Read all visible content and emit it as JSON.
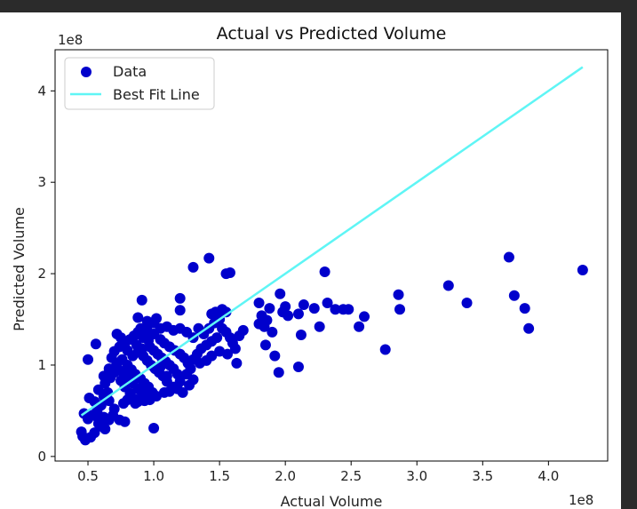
{
  "chart_data": {
    "type": "scatter",
    "title": "Actual vs Predicted Volume",
    "xlabel": "Actual Volume",
    "ylabel": "Predicted Volume",
    "x_offset_label": "1e8",
    "y_offset_label": "1e8",
    "xlim": [
      0.25,
      4.45
    ],
    "ylim": [
      -0.05,
      4.45
    ],
    "x_ticks": [
      0.5,
      1.0,
      1.5,
      2.0,
      2.5,
      3.0,
      3.5,
      4.0
    ],
    "x_tick_labels": [
      "0.5",
      "1.0",
      "1.5",
      "2.0",
      "2.5",
      "3.0",
      "3.5",
      "4.0"
    ],
    "y_ticks": [
      0,
      1,
      2,
      3,
      4
    ],
    "y_tick_labels": [
      "0",
      "1",
      "2",
      "3",
      "4"
    ],
    "grid": false,
    "legend_placement": "top-left",
    "series": [
      {
        "name": "Data",
        "kind": "scatter",
        "color": "#0000cc",
        "points": [
          [
            0.46,
            0.22
          ],
          [
            0.48,
            0.18
          ],
          [
            0.52,
            0.21
          ],
          [
            0.45,
            0.27
          ],
          [
            0.55,
            0.26
          ],
          [
            0.58,
            0.36
          ],
          [
            0.6,
            0.33
          ],
          [
            0.63,
            0.3
          ],
          [
            0.5,
            0.41
          ],
          [
            0.47,
            0.47
          ],
          [
            0.53,
            0.45
          ],
          [
            0.57,
            0.5
          ],
          [
            0.6,
            0.56
          ],
          [
            0.51,
            0.64
          ],
          [
            0.55,
            0.6
          ],
          [
            0.62,
            0.66
          ],
          [
            0.65,
            0.7
          ],
          [
            0.58,
            0.73
          ],
          [
            0.66,
            0.61
          ],
          [
            0.7,
            0.52
          ],
          [
            0.69,
            0.45
          ],
          [
            0.74,
            0.4
          ],
          [
            0.77,
            0.58
          ],
          [
            0.8,
            0.62
          ],
          [
            0.63,
            0.8
          ],
          [
            0.67,
            0.86
          ],
          [
            0.7,
            0.92
          ],
          [
            0.73,
            0.95
          ],
          [
            0.66,
            0.96
          ],
          [
            0.62,
            0.88
          ],
          [
            0.75,
            0.83
          ],
          [
            0.78,
            0.76
          ],
          [
            0.82,
            0.69
          ],
          [
            0.85,
            0.63
          ],
          [
            0.88,
            0.6
          ],
          [
            0.72,
            1.02
          ],
          [
            0.76,
            1.06
          ],
          [
            0.8,
            1.0
          ],
          [
            0.83,
            0.95
          ],
          [
            0.86,
            0.9
          ],
          [
            0.9,
            0.85
          ],
          [
            0.93,
            0.8
          ],
          [
            0.96,
            0.76
          ],
          [
            0.99,
            0.7
          ],
          [
            1.02,
            0.66
          ],
          [
            0.84,
            1.1
          ],
          [
            0.88,
            1.14
          ],
          [
            0.92,
            1.1
          ],
          [
            0.95,
            1.05
          ],
          [
            0.98,
            1.0
          ],
          [
            1.01,
            0.96
          ],
          [
            1.04,
            0.92
          ],
          [
            1.07,
            0.88
          ],
          [
            1.1,
            0.82
          ],
          [
            0.8,
            1.16
          ],
          [
            0.74,
            1.2
          ],
          [
            0.78,
            1.24
          ],
          [
            0.82,
            1.28
          ],
          [
            0.87,
            1.22
          ],
          [
            0.91,
            1.18
          ],
          [
            0.97,
            1.2
          ],
          [
            1.0,
            1.16
          ],
          [
            1.03,
            1.12
          ],
          [
            1.06,
            1.08
          ],
          [
            1.09,
            1.04
          ],
          [
            1.12,
            1.0
          ],
          [
            1.15,
            0.96
          ],
          [
            1.18,
            0.9
          ],
          [
            0.85,
            1.32
          ],
          [
            0.92,
            1.3
          ],
          [
            0.96,
            1.27
          ],
          [
            1.0,
            1.34
          ],
          [
            1.05,
            1.28
          ],
          [
            1.08,
            1.24
          ],
          [
            1.12,
            1.2
          ],
          [
            1.16,
            1.16
          ],
          [
            1.2,
            1.12
          ],
          [
            1.23,
            1.08
          ],
          [
            1.26,
            1.02
          ],
          [
            0.72,
            1.34
          ],
          [
            0.75,
            1.3
          ],
          [
            0.7,
            1.15
          ],
          [
            0.68,
            1.08
          ],
          [
            0.71,
            0.98
          ],
          [
            0.77,
            0.91
          ],
          [
            0.81,
            0.86
          ],
          [
            0.84,
            0.8
          ],
          [
            0.88,
            0.74
          ],
          [
            0.91,
            0.7
          ],
          [
            0.95,
            0.66
          ],
          [
            1.08,
            0.7
          ],
          [
            1.15,
            0.76
          ],
          [
            1.2,
            0.82
          ],
          [
            1.25,
            0.9
          ],
          [
            1.28,
            0.96
          ],
          [
            1.3,
            1.06
          ],
          [
            1.33,
            1.12
          ],
          [
            1.36,
            1.18
          ],
          [
            1.4,
            1.22
          ],
          [
            1.44,
            1.26
          ],
          [
            1.48,
            1.3
          ],
          [
            1.3,
            1.3
          ],
          [
            1.25,
            1.36
          ],
          [
            1.2,
            1.4
          ],
          [
            1.15,
            1.38
          ],
          [
            1.1,
            1.42
          ],
          [
            1.05,
            1.4
          ],
          [
            1.0,
            1.46
          ],
          [
            0.95,
            1.38
          ],
          [
            0.9,
            1.4
          ],
          [
            0.88,
            1.36
          ],
          [
            1.34,
            1.4
          ],
          [
            1.38,
            1.34
          ],
          [
            1.42,
            1.4
          ],
          [
            1.46,
            1.46
          ],
          [
            1.5,
            1.5
          ],
          [
            1.52,
            1.4
          ],
          [
            1.55,
            1.36
          ],
          [
            1.58,
            1.3
          ],
          [
            1.6,
            1.24
          ],
          [
            1.62,
            1.18
          ],
          [
            1.56,
            1.12
          ],
          [
            1.5,
            1.15
          ],
          [
            1.44,
            1.1
          ],
          [
            1.4,
            1.05
          ],
          [
            1.65,
            1.32
          ],
          [
            1.68,
            1.38
          ],
          [
            1.63,
            1.02
          ],
          [
            1.55,
            1.58
          ],
          [
            1.52,
            1.61
          ],
          [
            1.47,
            1.58
          ],
          [
            1.44,
            1.56
          ],
          [
            1.2,
            1.6
          ],
          [
            1.2,
            1.73
          ],
          [
            1.3,
            2.07
          ],
          [
            1.42,
            2.17
          ],
          [
            1.55,
            2.0
          ],
          [
            1.58,
            2.01
          ],
          [
            0.91,
            1.71
          ],
          [
            0.88,
            1.52
          ],
          [
            0.95,
            1.48
          ],
          [
            1.02,
            1.51
          ],
          [
            0.56,
            1.23
          ],
          [
            0.5,
            1.06
          ],
          [
            0.58,
            0.41
          ],
          [
            0.62,
            0.43
          ],
          [
            0.66,
            0.4
          ],
          [
            0.78,
            0.38
          ],
          [
            0.86,
            0.58
          ],
          [
            0.93,
            0.61
          ],
          [
            0.97,
            0.62
          ],
          [
            1.0,
            0.31
          ],
          [
            1.12,
            0.71
          ],
          [
            1.18,
            0.74
          ],
          [
            1.22,
            0.7
          ],
          [
            1.27,
            0.78
          ],
          [
            1.3,
            0.84
          ],
          [
            1.1,
            0.88
          ],
          [
            1.05,
            0.98
          ],
          [
            1.35,
            1.02
          ],
          [
            1.8,
            1.68
          ],
          [
            1.82,
            1.54
          ],
          [
            1.8,
            1.45
          ],
          [
            1.86,
            1.49
          ],
          [
            1.84,
            1.42
          ],
          [
            1.88,
            1.62
          ],
          [
            1.9,
            1.36
          ],
          [
            1.85,
            1.22
          ],
          [
            1.92,
            1.1
          ],
          [
            1.95,
            0.92
          ],
          [
            1.98,
            1.58
          ],
          [
            1.96,
            1.78
          ],
          [
            2.0,
            1.64
          ],
          [
            2.02,
            1.54
          ],
          [
            2.1,
            1.56
          ],
          [
            2.14,
            1.66
          ],
          [
            2.12,
            1.33
          ],
          [
            2.1,
            0.98
          ],
          [
            2.22,
            1.62
          ],
          [
            2.26,
            1.42
          ],
          [
            2.3,
            2.02
          ],
          [
            2.32,
            1.68
          ],
          [
            2.38,
            1.61
          ],
          [
            2.44,
            1.61
          ],
          [
            2.48,
            1.61
          ],
          [
            2.56,
            1.42
          ],
          [
            2.6,
            1.53
          ],
          [
            2.76,
            1.17
          ],
          [
            2.86,
            1.77
          ],
          [
            2.87,
            1.61
          ],
          [
            3.24,
            1.87
          ],
          [
            3.38,
            1.68
          ],
          [
            3.7,
            2.18
          ],
          [
            3.74,
            1.76
          ],
          [
            3.82,
            1.62
          ],
          [
            3.85,
            1.4
          ],
          [
            4.26,
            2.04
          ]
        ]
      },
      {
        "name": "Best Fit Line",
        "kind": "line",
        "color": "#5ff5f5",
        "points": [
          [
            0.45,
            0.45
          ],
          [
            4.26,
            4.26
          ]
        ]
      }
    ]
  }
}
